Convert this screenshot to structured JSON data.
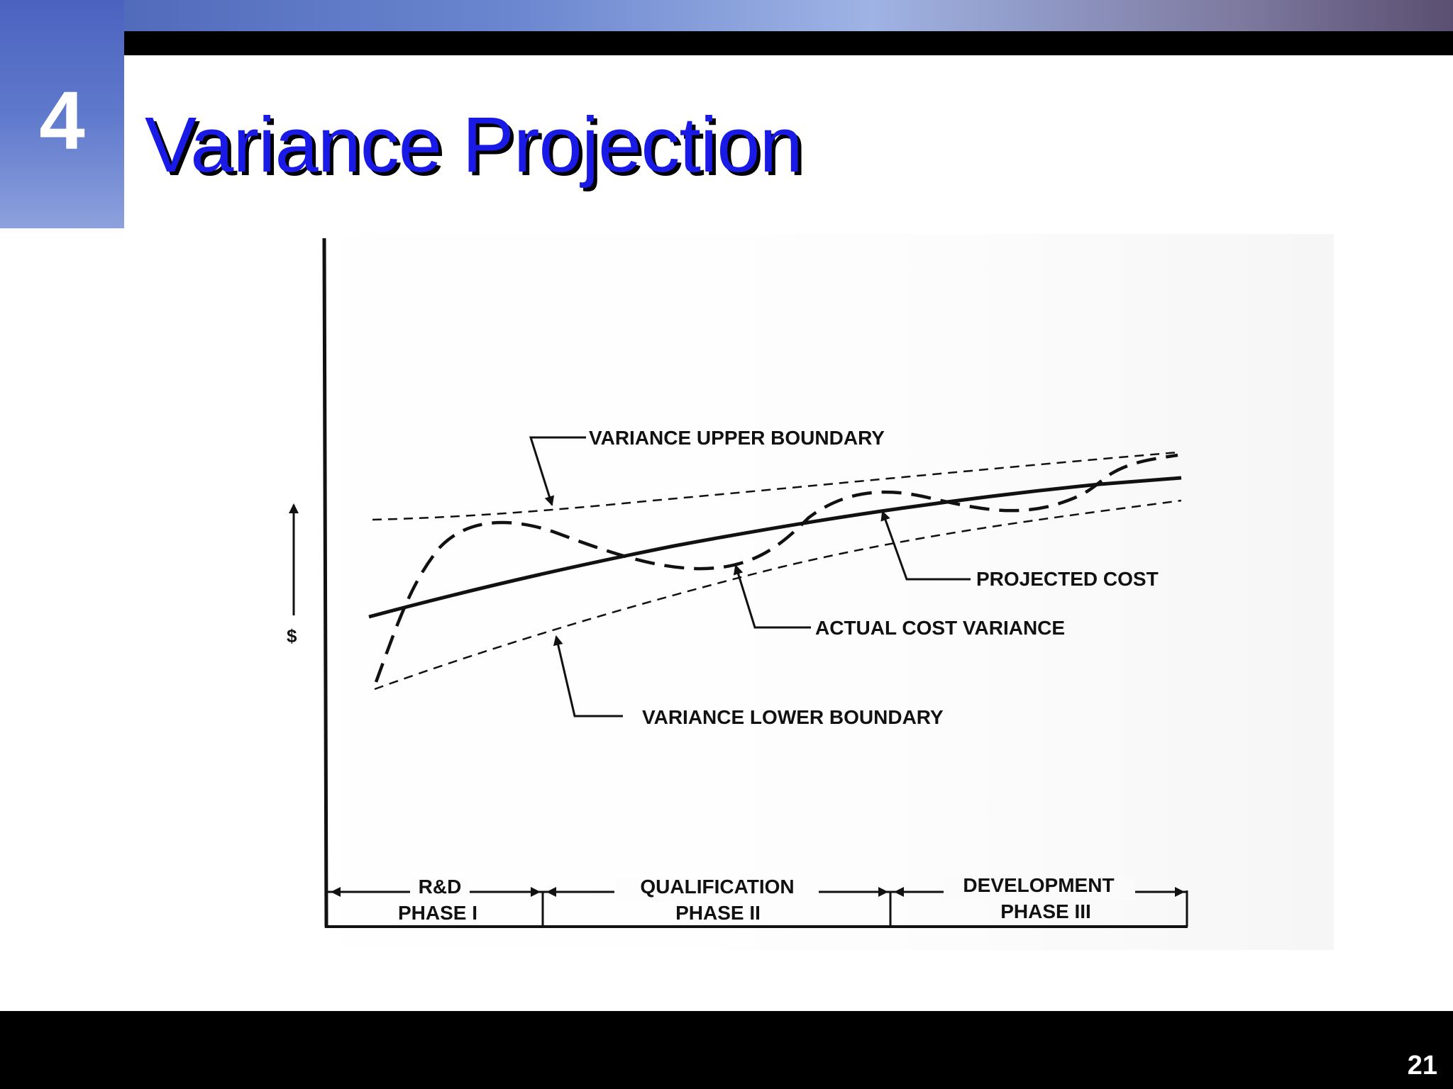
{
  "slide": {
    "section_number": "4",
    "title": "Variance Projection",
    "page_number": "21"
  },
  "diagram": {
    "y_axis_label": "$",
    "callouts": {
      "upper_boundary": "VARIANCE UPPER BOUNDARY",
      "projected_cost": "PROJECTED COST",
      "actual_cost_variance": "ACTUAL COST VARIANCE",
      "lower_boundary": "VARIANCE LOWER BOUNDARY"
    },
    "phases": [
      {
        "name": "R&D",
        "label": "PHASE I"
      },
      {
        "name": "QUALIFICATION",
        "label": "PHASE II"
      },
      {
        "name": "DEVELOPMENT",
        "label": "PHASE III"
      }
    ]
  }
}
